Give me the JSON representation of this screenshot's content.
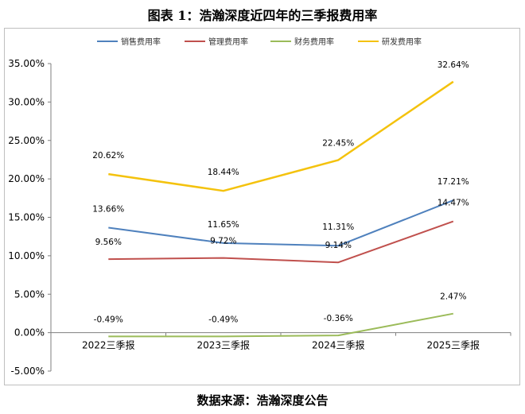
{
  "title": "图表 1：浩瀚深度近四年的三季报费用率",
  "source": "数据来源：浩瀚深度公告",
  "chart_data": {
    "type": "line",
    "categories": [
      "2022三季报",
      "2023三季报",
      "2024三季报",
      "2025三季报"
    ],
    "ylim": [
      -5,
      35
    ],
    "yticks": [
      -5,
      0,
      5,
      10,
      15,
      20,
      25,
      30,
      35
    ],
    "ytick_labels": [
      "-5.00%",
      "0.00%",
      "5.00%",
      "10.00%",
      "15.00%",
      "20.00%",
      "25.00%",
      "30.00%",
      "35.00%"
    ],
    "legend_position": "top",
    "grid": false,
    "series": [
      {
        "name": "销售费用率",
        "color": "#4F81BD",
        "values": [
          13.66,
          11.65,
          11.31,
          17.21
        ],
        "labels": [
          "13.66%",
          "11.65%",
          "11.31%",
          "17.21%"
        ]
      },
      {
        "name": "管理费用率",
        "color": "#C0504D",
        "values": [
          9.56,
          9.72,
          9.14,
          14.47
        ],
        "labels": [
          "9.56%",
          "9.72%",
          "9.14%",
          "14.47%"
        ]
      },
      {
        "name": "财务费用率",
        "color": "#9BBB59",
        "values": [
          -0.49,
          -0.49,
          -0.36,
          2.47
        ],
        "labels": [
          "-0.49%",
          "-0.49%",
          "-0.36%",
          "2.47%"
        ]
      },
      {
        "name": "研发费用率",
        "color": "#F4C20D",
        "values": [
          20.62,
          18.44,
          22.45,
          32.64
        ],
        "labels": [
          "20.62%",
          "18.44%",
          "22.45%",
          "32.64%"
        ]
      }
    ]
  }
}
